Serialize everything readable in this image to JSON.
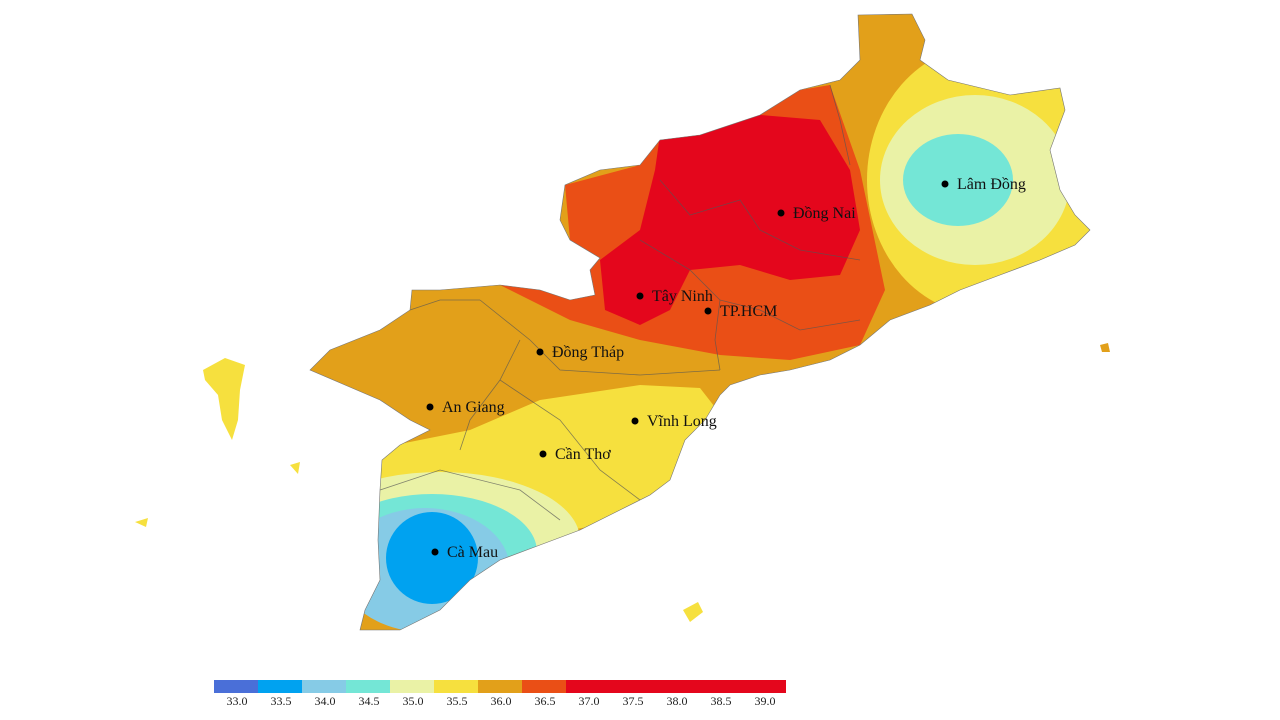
{
  "colors": {
    "t33_0": "#4a6fd8",
    "t33_5": "#00a2f0",
    "t34_0": "#86cbe6",
    "t34_5": "#74e6d6",
    "t35_0": "#eaf2a6",
    "t35_5": "#f6e03e",
    "t36_0": "#e2a01a",
    "t36_5": "#ea4f16",
    "t37_plus": "#e4061c",
    "border": "#555555"
  },
  "cities": [
    {
      "name": "Lâm Đồng"
    },
    {
      "name": "Đồng Nai"
    },
    {
      "name": "Tây Ninh"
    },
    {
      "name": "TP.HCM"
    },
    {
      "name": "Đồng Tháp"
    },
    {
      "name": "An Giang"
    },
    {
      "name": "Vĩnh Long"
    },
    {
      "name": "Cần Thơ"
    },
    {
      "name": "Cà Mau"
    }
  ],
  "legend": {
    "ticks": [
      "33.0",
      "33.5",
      "34.0",
      "34.5",
      "35.0",
      "35.5",
      "36.0",
      "36.5",
      "37.0",
      "37.5",
      "38.0",
      "38.5",
      "39.0"
    ]
  }
}
